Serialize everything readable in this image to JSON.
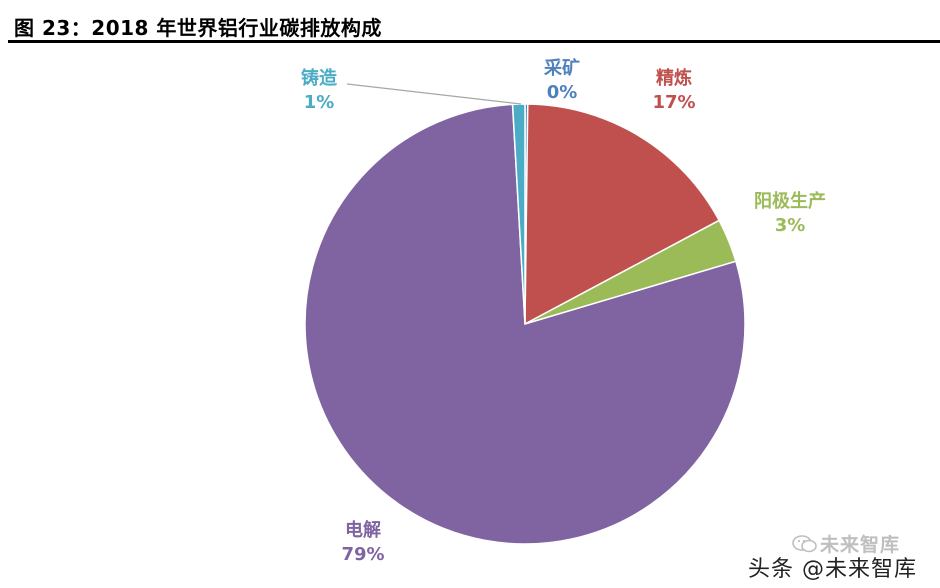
{
  "title": "图 23：2018 年世界铝行业碳排放构成",
  "chart_data": {
    "type": "pie",
    "start_angle_deg": 0,
    "direction": "clockwise",
    "slices": [
      {
        "label": "采矿",
        "value": 0.2,
        "pct_label": "0%",
        "color": "#4F81BD"
      },
      {
        "label": "精炼",
        "value": 17,
        "pct_label": "17%",
        "color": "#C0504D"
      },
      {
        "label": "阳极生产",
        "value": 3.2,
        "pct_label": "3%",
        "color": "#9BBB59"
      },
      {
        "label": "电解",
        "value": 78.7,
        "pct_label": "79%",
        "color": "#8064A2"
      },
      {
        "label": "铸造",
        "value": 0.9,
        "pct_label": "1%",
        "color": "#4BACC6"
      }
    ],
    "legend": "none",
    "data_labels": "outside"
  },
  "watermark": {
    "line1": "未来智库",
    "line2": "头条 @未来智库"
  }
}
